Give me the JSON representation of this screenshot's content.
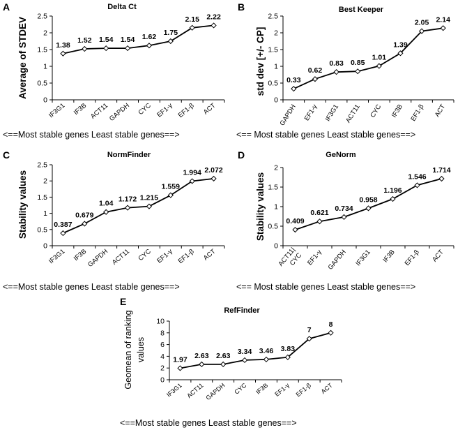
{
  "chart_data": [
    {
      "panel_letter": "A",
      "type": "line",
      "title": "Delta Ct",
      "ylabel": "Average of STDEV",
      "xlabel": "",
      "categories": [
        "IF3G1",
        "IF3B",
        "ACT11",
        "GAPDH",
        "CYC",
        "EF1-γ",
        "EF1-β",
        "ACT"
      ],
      "values": [
        1.38,
        1.52,
        1.54,
        1.54,
        1.62,
        1.75,
        2.15,
        2.22
      ],
      "data_labels": [
        "1.38",
        "1.52",
        "1.54",
        "1.54",
        "1.62",
        "1.75",
        "2.15",
        "2.22"
      ],
      "ylim": [
        0,
        2.5
      ],
      "yticks": [
        "0",
        "0.5",
        "1",
        "1.5",
        "2",
        "2.5"
      ],
      "footer": "<==Most stable genes  Least stable genes==>"
    },
    {
      "panel_letter": "B",
      "type": "line",
      "title": "Best Keeper",
      "ylabel": "std dev [+/- CP]",
      "xlabel": "",
      "categories": [
        "GAPDH",
        "EF1-γ",
        "IF3G1",
        "ACT11",
        "CYC",
        "IF3B",
        "EF1-β",
        "ACT"
      ],
      "values": [
        0.33,
        0.62,
        0.83,
        0.85,
        1.01,
        1.39,
        2.05,
        2.14
      ],
      "data_labels": [
        "0.33",
        "0.62",
        "0.83",
        "0.85",
        "1.01",
        "1.39",
        "2.05",
        "2.14"
      ],
      "ylim": [
        0,
        2.5
      ],
      "yticks": [
        "0",
        "0.5",
        "1",
        "1.5",
        "2",
        "2.5"
      ],
      "footer": "<== Most stable genes  Least stable genes==>"
    },
    {
      "panel_letter": "C",
      "type": "line",
      "title": "NormFinder",
      "ylabel": "Stability values",
      "xlabel": "",
      "categories": [
        "IF3G1",
        "IF3B",
        "GAPDH",
        "ACT11",
        "CYC",
        "EF1-γ",
        "EF1-β",
        "ACT"
      ],
      "values": [
        0.387,
        0.679,
        1.04,
        1.172,
        1.215,
        1.559,
        1.994,
        2.072
      ],
      "data_labels": [
        "0.387",
        "0.679",
        "1.04",
        "1.172",
        "1.215",
        "1.559",
        "1.994",
        "2.072"
      ],
      "ylim": [
        0,
        2.5
      ],
      "yticks": [
        "0",
        "0.5",
        "1",
        "1.5",
        "2",
        "2.5"
      ],
      "footer": "<==Most stable genes  Least stable genes==>"
    },
    {
      "panel_letter": "D",
      "type": "line",
      "title": "GeNorm",
      "ylabel": "Stability values",
      "xlabel": "",
      "categories": [
        "ACT11|CYC",
        "EF1-γ",
        "GAPDH",
        "IF3G1",
        "IF3B",
        "EF1-β",
        "ACT"
      ],
      "values": [
        0.409,
        0.621,
        0.734,
        0.958,
        1.196,
        1.546,
        1.714
      ],
      "data_labels": [
        "0.409",
        "0.621",
        "0.734",
        "0.958",
        "1.196",
        "1.546",
        "1.714"
      ],
      "ylim": [
        0,
        2
      ],
      "yticks": [
        "0",
        "0.5",
        "1",
        "1.5",
        "2"
      ],
      "footer": "<== Most stable genes  Least stable genes==>"
    },
    {
      "panel_letter": "E",
      "type": "line",
      "title": "RefFinder",
      "ylabel": "Geomean of ranking values",
      "ylabel_lines": [
        "Geomean of ranking",
        "values"
      ],
      "xlabel": "",
      "categories": [
        "IF3G1",
        "ACT11",
        "GAPDH",
        "CYC",
        "IF3B",
        "EF1-γ",
        "EF1-β",
        "ACT"
      ],
      "values": [
        1.97,
        2.63,
        2.63,
        3.34,
        3.46,
        3.83,
        7,
        8
      ],
      "data_labels": [
        "1.97",
        "2.63",
        "2.63",
        "3.34",
        "3.46",
        "3.83",
        "7",
        "8"
      ],
      "ylim": [
        0,
        10
      ],
      "yticks": [
        "0",
        "2",
        "4",
        "6",
        "8",
        "10"
      ],
      "footer": "<==Most stable genes  Least stable genes==>"
    }
  ]
}
